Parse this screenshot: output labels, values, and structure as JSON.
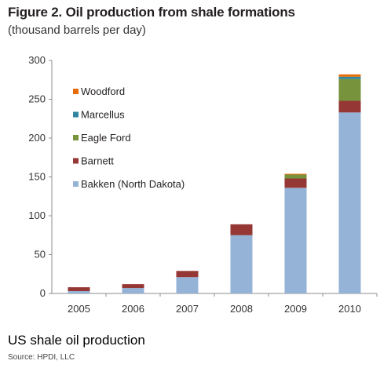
{
  "caption": "US shale oil production",
  "source": "Source:  HPDI, LLC",
  "chart_data": {
    "type": "bar",
    "stacked": true,
    "title": "Figure 2.  Oil production from shale formations",
    "subtitle": "(thousand barrels per day)",
    "categories": [
      "2005",
      "2006",
      "2007",
      "2008",
      "2009",
      "2010"
    ],
    "ylim": [
      0,
      300
    ],
    "yticks": [
      0,
      50,
      100,
      150,
      200,
      250,
      300
    ],
    "grid": false,
    "legend_position": "top-left",
    "series": [
      {
        "name": "Bakken (North Dakota)",
        "color": "#95b3d7",
        "values": [
          3,
          7,
          21,
          75,
          136,
          233
        ]
      },
      {
        "name": "Barnett",
        "color": "#953735",
        "values": [
          5,
          5,
          8,
          14,
          12,
          15
        ]
      },
      {
        "name": "Eagle Ford",
        "color": "#77933c",
        "values": [
          0,
          0,
          0,
          0,
          5,
          28
        ]
      },
      {
        "name": "Marcellus",
        "color": "#31859c",
        "values": [
          0,
          0,
          0,
          0,
          0,
          3
        ]
      },
      {
        "name": "Woodford",
        "color": "#e46c0a",
        "values": [
          0,
          0,
          0,
          0,
          1,
          3
        ]
      }
    ],
    "legend_order": [
      "Woodford",
      "Marcellus",
      "Eagle Ford",
      "Barnett",
      "Bakken (North Dakota)"
    ]
  }
}
